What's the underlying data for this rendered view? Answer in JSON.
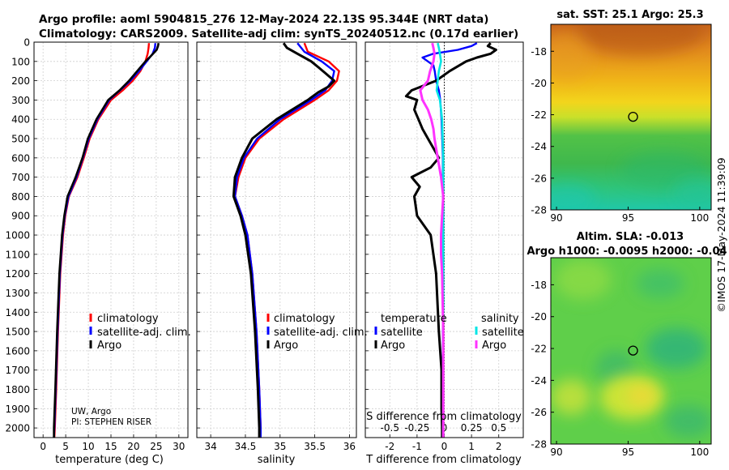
{
  "header": {
    "line1": "Argo profile: aoml 5904815_276 12-May-2024 22.13S 95.344E (NRT data)",
    "line2": "Climatology: CARS2009. Satellite-adj clim: synTS_20240512.nc (0.17d earlier)"
  },
  "depth_ticks": [
    0,
    100,
    200,
    300,
    400,
    500,
    600,
    700,
    800,
    900,
    1000,
    1100,
    1200,
    1300,
    1400,
    1500,
    1600,
    1700,
    1800,
    1900,
    2000
  ],
  "colors": {
    "climatology": "#ff0000",
    "satellite": "#0000ff",
    "argo": "#000000",
    "sal_satellite": "#00e5e5",
    "sal_argo": "#ff33ff"
  },
  "chart_data": [
    {
      "type": "line",
      "id": "temperature",
      "xlabel": "temperature (deg C)",
      "xlim": [
        -2,
        32
      ],
      "ylim": [
        2050,
        0
      ],
      "x_ticks": [
        0,
        5,
        10,
        15,
        20,
        25,
        30
      ],
      "legend": [
        "climatology",
        "satellite-adj. clim.",
        "Argo"
      ],
      "footnote": [
        "UW, Argo",
        "PI: STEPHEN RISER"
      ],
      "series": [
        {
          "name": "climatology",
          "depth": [
            5,
            30,
            60,
            100,
            150,
            200,
            250,
            300,
            400,
            500,
            600,
            700,
            800,
            900,
            1000,
            1200,
            1500,
            1800,
            2000,
            2050
          ],
          "values": [
            23.4,
            23.3,
            23.1,
            22.6,
            21.5,
            19.8,
            17.6,
            15.0,
            12.2,
            10.3,
            9.0,
            7.6,
            5.7,
            4.9,
            4.4,
            3.8,
            3.3,
            2.9,
            2.6,
            2.5
          ]
        },
        {
          "name": "satellite-adj. clim.",
          "depth": [
            5,
            30,
            60,
            100,
            150,
            200,
            250,
            300,
            400,
            500,
            600,
            700,
            800,
            900,
            1000,
            1200,
            1500,
            1800,
            2000,
            2050
          ],
          "values": [
            24.8,
            24.7,
            24.2,
            22.9,
            21.2,
            19.3,
            17.0,
            14.6,
            12.0,
            10.1,
            8.8,
            7.4,
            5.6,
            4.8,
            4.3,
            3.7,
            3.2,
            2.8,
            2.5,
            2.4
          ]
        },
        {
          "name": "Argo",
          "depth": [
            5,
            20,
            40,
            60,
            80,
            100,
            150,
            200,
            250,
            300,
            400,
            500,
            600,
            700,
            800,
            900,
            1000,
            1200,
            1500,
            1800,
            2000,
            2050
          ],
          "values": [
            25.5,
            25.4,
            25.1,
            24.3,
            23.5,
            22.6,
            20.8,
            19.0,
            16.9,
            14.4,
            11.8,
            9.9,
            8.7,
            7.2,
            5.4,
            4.7,
            4.2,
            3.6,
            3.1,
            2.7,
            2.4,
            2.4
          ]
        }
      ]
    },
    {
      "type": "line",
      "id": "salinity",
      "xlabel": "salinity",
      "xlim": [
        33.8,
        36.1
      ],
      "ylim": [
        2050,
        0
      ],
      "x_ticks": [
        34,
        34.5,
        35,
        35.5,
        36
      ],
      "legend": [
        "climatology",
        "satellite-adj. clim.",
        "Argo"
      ],
      "series": [
        {
          "name": "climatology",
          "depth": [
            5,
            50,
            100,
            150,
            200,
            250,
            300,
            400,
            500,
            600,
            700,
            800,
            900,
            1000,
            1200,
            1500,
            1800,
            2000,
            2050
          ],
          "values": [
            35.35,
            35.4,
            35.7,
            35.85,
            35.82,
            35.7,
            35.5,
            35.05,
            34.7,
            34.5,
            34.4,
            34.35,
            34.45,
            34.53,
            34.6,
            34.66,
            34.7,
            34.72,
            34.72
          ]
        },
        {
          "name": "satellite-adj. clim.",
          "depth": [
            5,
            50,
            100,
            150,
            200,
            250,
            300,
            400,
            500,
            600,
            700,
            800,
            900,
            1000,
            1200,
            1500,
            1800,
            2000,
            2050
          ],
          "values": [
            35.25,
            35.35,
            35.6,
            35.78,
            35.75,
            35.65,
            35.45,
            35.0,
            34.67,
            34.48,
            34.38,
            34.35,
            34.45,
            34.53,
            34.6,
            34.66,
            34.7,
            34.72,
            34.72
          ]
        },
        {
          "name": "Argo",
          "depth": [
            5,
            30,
            60,
            100,
            130,
            160,
            200,
            230,
            260,
            300,
            400,
            500,
            600,
            700,
            800,
            900,
            1000,
            1200,
            1500,
            1800,
            2000,
            2050
          ],
          "values": [
            35.05,
            35.1,
            35.25,
            35.45,
            35.55,
            35.65,
            35.78,
            35.7,
            35.55,
            35.4,
            34.95,
            34.6,
            34.45,
            34.35,
            34.33,
            34.43,
            34.5,
            34.58,
            34.64,
            34.68,
            34.7,
            34.7
          ]
        }
      ]
    },
    {
      "type": "line",
      "id": "differences",
      "xlabel": "T difference from climatology",
      "x2label": "S difference from climatology",
      "xlim": [
        -2.9,
        2.9
      ],
      "ylim": [
        2050,
        0
      ],
      "x_ticks": [
        -2,
        -1,
        0,
        1,
        2
      ],
      "x2_ticks": [
        "-0.5",
        "-0.25",
        "0",
        "0.25",
        "0.5"
      ],
      "x2_scale": 4,
      "legend_left_title": "temperature",
      "legend_right_title": "salinity",
      "legend": [
        "satellite",
        "Argo",
        "satellite",
        "Argo"
      ],
      "series": [
        {
          "name": "temperature satellite",
          "depth": [
            5,
            20,
            40,
            60,
            80,
            100,
            120,
            150,
            200,
            250,
            300,
            400,
            600,
            800,
            1000,
            1500,
            2000,
            2050
          ],
          "values": [
            1.2,
            1.0,
            0.5,
            -0.4,
            -0.8,
            -0.6,
            -0.4,
            -0.35,
            -0.3,
            -0.2,
            -0.15,
            -0.1,
            -0.05,
            -0.05,
            -0.05,
            -0.05,
            -0.05,
            -0.05
          ]
        },
        {
          "name": "temperature Argo",
          "depth": [
            5,
            20,
            40,
            60,
            80,
            100,
            150,
            200,
            250,
            280,
            300,
            350,
            400,
            450,
            500,
            550,
            600,
            650,
            700,
            750,
            800,
            900,
            1000,
            1200,
            1500,
            1700,
            1900,
            2000,
            2050
          ],
          "values": [
            1.7,
            1.6,
            1.9,
            1.7,
            1.2,
            0.8,
            0.2,
            -0.3,
            -1.2,
            -1.4,
            -1.0,
            -1.1,
            -0.95,
            -0.8,
            -0.6,
            -0.4,
            -0.2,
            -0.5,
            -1.2,
            -0.9,
            -1.1,
            -1.0,
            -0.5,
            -0.3,
            -0.2,
            -0.1,
            -0.1,
            -0.08,
            -0.08
          ]
        },
        {
          "name": "salinity satellite",
          "depth": [
            5,
            30,
            60,
            100,
            150,
            200,
            250,
            300,
            350,
            400,
            600,
            800,
            1000,
            1500,
            2000,
            2050
          ],
          "values": [
            -0.06,
            -0.05,
            -0.04,
            -0.03,
            -0.05,
            -0.06,
            -0.07,
            -0.04,
            -0.03,
            -0.02,
            -0.01,
            -0.01,
            -0.01,
            -0.01,
            -0.01,
            -0.01
          ]
        },
        {
          "name": "salinity Argo",
          "depth": [
            5,
            30,
            60,
            100,
            150,
            200,
            250,
            300,
            350,
            400,
            450,
            500,
            600,
            700,
            800,
            900,
            1000,
            1100,
            1200,
            1500,
            2000,
            2050
          ],
          "values": [
            -0.11,
            -0.1,
            -0.09,
            -0.1,
            -0.13,
            -0.15,
            -0.22,
            -0.2,
            -0.15,
            -0.12,
            -0.1,
            -0.09,
            -0.06,
            -0.03,
            -0.01,
            -0.02,
            -0.03,
            -0.03,
            -0.02,
            -0.01,
            -0.01,
            -0.01
          ]
        }
      ]
    },
    {
      "type": "heatmap",
      "id": "sst_map",
      "title": "sat. SST: 25.1 Argo: 25.3",
      "xlim": [
        89.6,
        100.8
      ],
      "ylim": [
        -28,
        -16.3
      ],
      "x_ticks": [
        90,
        95,
        100
      ],
      "y_ticks": [
        -18,
        -20,
        -22,
        -24,
        -26,
        -28
      ],
      "marker": {
        "lon": 95.344,
        "lat": -22.13
      }
    },
    {
      "type": "heatmap",
      "id": "sla_map",
      "title": "Altim. SLA: -0.013",
      "subtitle": "Argo h1000: -0.0095 h2000: -0.04",
      "xlim": [
        89.6,
        100.8
      ],
      "ylim": [
        -28,
        -16.3
      ],
      "x_ticks": [
        90,
        95,
        100
      ],
      "y_ticks": [
        -18,
        -20,
        -22,
        -24,
        -26,
        -28
      ],
      "marker": {
        "lon": 95.344,
        "lat": -22.13
      }
    }
  ],
  "credit": "©IMOS 17-May-2024 11:39:09"
}
